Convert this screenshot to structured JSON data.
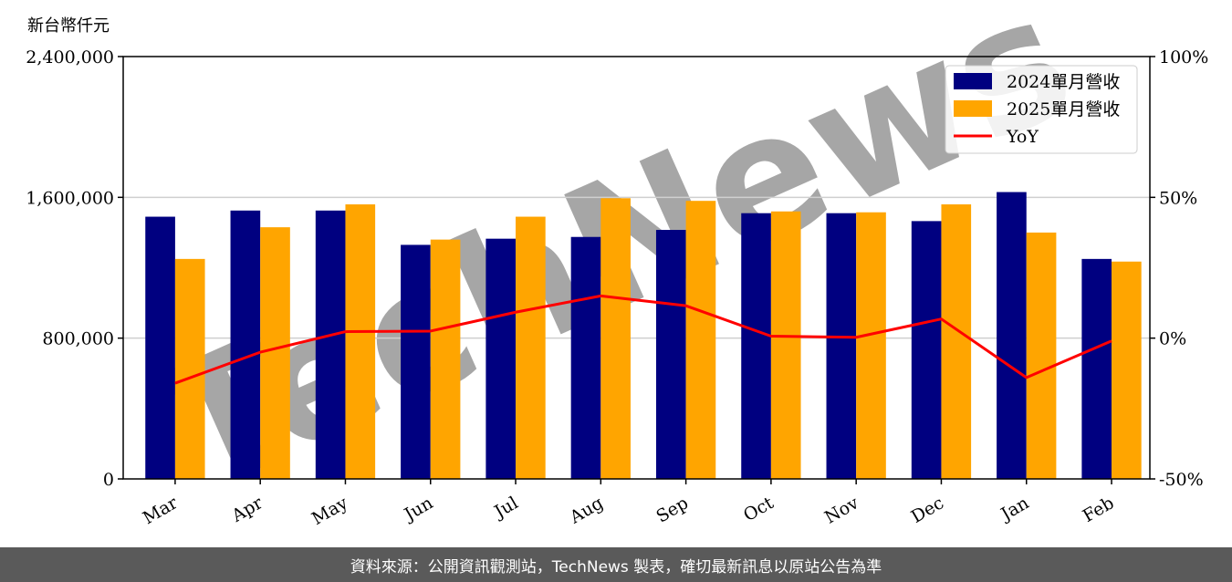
{
  "unit_label": "新台幣仟元",
  "footer_text": "資料來源：公開資訊觀測站，TechNews 製表，確切最新訊息以原站公告為準",
  "watermark_text": "TechNews",
  "chart_data": {
    "type": "bar",
    "categories": [
      "Mar",
      "Apr",
      "May",
      "Jun",
      "Jul",
      "Aug",
      "Sep",
      "Oct",
      "Nov",
      "Dec",
      "Jan",
      "Feb"
    ],
    "series": [
      {
        "name": "2024單月營收",
        "type": "bar",
        "color": "#000080",
        "values": [
          1490000,
          1525000,
          1525000,
          1330000,
          1365000,
          1375000,
          1415000,
          1510000,
          1510000,
          1465000,
          1630000,
          1250000
        ]
      },
      {
        "name": "2025單月營收",
        "type": "bar",
        "color": "#ffa500",
        "values": [
          1250000,
          1430000,
          1560000,
          1360000,
          1490000,
          1595000,
          1580000,
          1520000,
          1515000,
          1560000,
          1400000,
          1235000
        ]
      },
      {
        "name": "YoY",
        "type": "line",
        "color": "#ff0000",
        "axis": "right",
        "values": [
          -16,
          -5,
          2.3,
          2.5,
          9.2,
          15,
          11.5,
          0.7,
          0.3,
          6.8,
          -14,
          -1
        ]
      }
    ],
    "ylim": [
      0,
      2400000
    ],
    "y_ticks": [
      "0",
      "800,000",
      "1,600,000",
      "2,400,000"
    ],
    "y_tick_values": [
      0,
      800000,
      1600000,
      2400000
    ],
    "y2lim": [
      -50,
      100
    ],
    "y2_ticks": [
      "-50%",
      "0%",
      "50%",
      "100%"
    ],
    "y2_tick_values": [
      -50,
      0,
      50,
      100
    ],
    "grid": true,
    "legend_position": "top-right"
  }
}
